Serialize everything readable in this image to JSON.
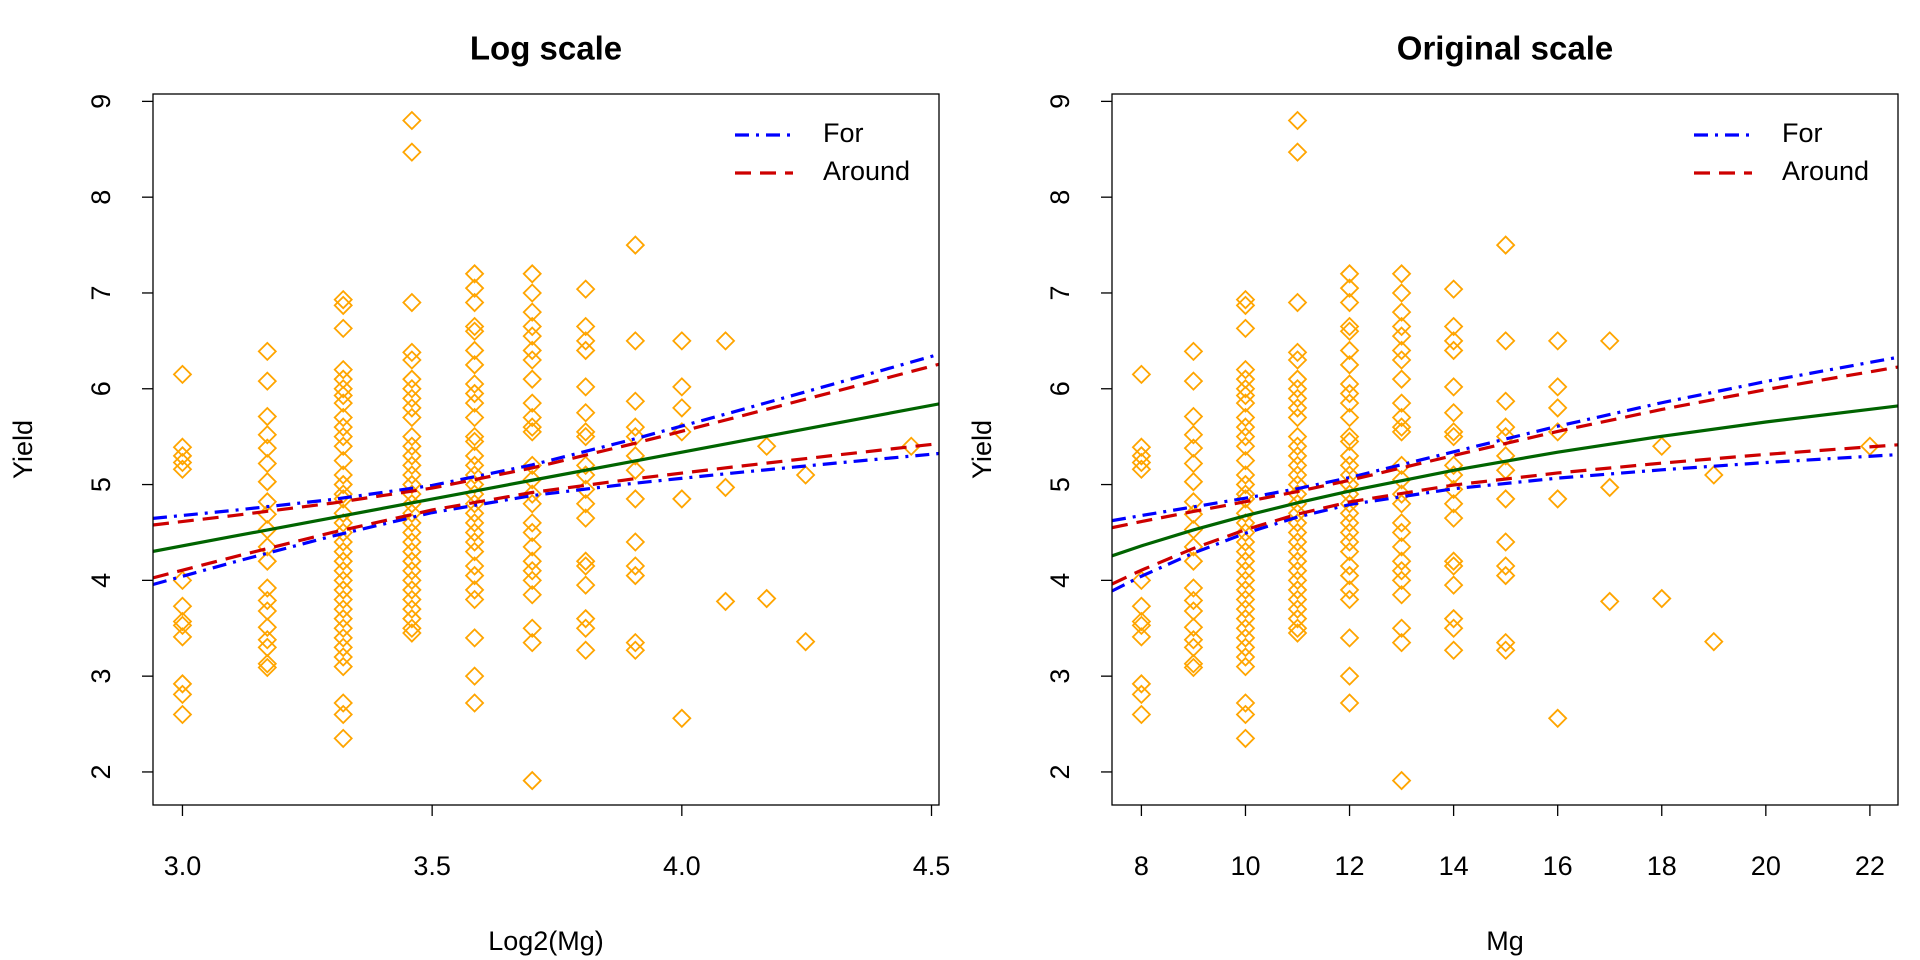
{
  "chart_data": [
    {
      "type": "scatter",
      "title": "Log scale",
      "xlabel": "Log2(Mg)",
      "ylabel": "Yield",
      "xlim": [
        2.941,
        4.515
      ],
      "ylim": [
        1.655,
        9.077
      ],
      "xticks": [
        {
          "value": 3,
          "label": "3.0"
        },
        3.5,
        {
          "value": 4,
          "label": "4.0"
        },
        4.5
      ],
      "yticks": [
        2,
        3,
        4,
        5,
        6,
        7,
        8,
        9
      ],
      "legend": "topright",
      "points": {
        "color": "#ffa500",
        "groups": [
          {
            "x": 3,
            "values": [
              6.15,
              5.39,
              5.3,
              5.23,
              5.16,
              4.0,
              3.73,
              3.57,
              3.53,
              3.41,
              2.92,
              2.81,
              2.6
            ]
          },
          {
            "x": 3.1699,
            "values": [
              6.39,
              6.08,
              5.71,
              5.52,
              5.38,
              5.22,
              5.03,
              4.82,
              4.69,
              4.53,
              4.35,
              4.2,
              3.92,
              3.79,
              3.68,
              3.51,
              3.38,
              3.3,
              3.13,
              3.09
            ]
          },
          {
            "x": 3.3219,
            "values": [
              6.93,
              6.87,
              6.63,
              6.2,
              6.1,
              6.0,
              5.93,
              5.85,
              5.7,
              5.6,
              5.5,
              5.4,
              5.25,
              5.1,
              5.0,
              4.9,
              4.85,
              4.7,
              4.6,
              4.5,
              4.4,
              4.3,
              4.2,
              4.1,
              4.0,
              3.9,
              3.8,
              3.7,
              3.6,
              3.5,
              3.4,
              3.3,
              3.2,
              3.1,
              2.72,
              2.6,
              2.35
            ]
          },
          {
            "x": 3.4594,
            "values": [
              8.8,
              8.47,
              6.9,
              6.38,
              6.3,
              6.1,
              6.0,
              5.9,
              5.8,
              5.7,
              5.5,
              5.4,
              5.3,
              5.2,
              5.1,
              5.0,
              4.9,
              4.8,
              4.7,
              4.6,
              4.5,
              4.4,
              4.3,
              4.2,
              4.1,
              4.0,
              3.9,
              3.8,
              3.7,
              3.6,
              3.5,
              3.45
            ]
          },
          {
            "x": 3.585,
            "values": [
              7.2,
              7.05,
              6.9,
              6.65,
              6.6,
              6.4,
              6.25,
              6.05,
              5.95,
              5.85,
              5.7,
              5.5,
              5.45,
              5.3,
              5.2,
              5.1,
              5.0,
              4.9,
              4.8,
              4.7,
              4.6,
              4.5,
              4.4,
              4.3,
              4.15,
              4.05,
              3.9,
              3.8,
              3.4,
              3.0,
              2.72
            ]
          },
          {
            "x": 3.7004,
            "values": [
              7.2,
              7.0,
              6.8,
              6.65,
              6.55,
              6.4,
              6.3,
              6.1,
              5.85,
              5.7,
              5.6,
              5.55,
              5.2,
              5.05,
              4.9,
              4.8,
              4.6,
              4.5,
              4.35,
              4.2,
              4.1,
              4.0,
              3.85,
              3.5,
              3.35,
              1.91
            ]
          },
          {
            "x": 3.8074,
            "values": [
              7.04,
              6.65,
              6.5,
              6.4,
              6.02,
              5.75,
              5.55,
              5.5,
              5.2,
              5.1,
              4.95,
              4.8,
              4.65,
              4.2,
              4.15,
              3.95,
              3.6,
              3.5,
              3.27
            ]
          },
          {
            "x": 3.9069,
            "values": [
              7.5,
              6.5,
              5.87,
              5.6,
              5.5,
              5.3,
              5.15,
              4.85,
              4.4,
              4.15,
              4.05,
              3.35,
              3.27
            ]
          },
          {
            "x": 4,
            "values": [
              6.5,
              6.02,
              5.8,
              5.55,
              4.85,
              2.56
            ]
          },
          {
            "x": 4.0875,
            "values": [
              6.5,
              4.97,
              3.78
            ]
          },
          {
            "x": 4.1699,
            "values": [
              5.4,
              3.81
            ]
          },
          {
            "x": 4.2479,
            "values": [
              5.1,
              3.36
            ]
          },
          {
            "x": 4.4594,
            "values": [
              5.4
            ]
          }
        ]
      },
      "curve_x": [
        2.941,
        3.1,
        3.3,
        3.5,
        3.7,
        3.9,
        4.1,
        4.3,
        4.515
      ],
      "fit": {
        "color": "#006400",
        "values": [
          4.302,
          4.458,
          4.653,
          4.849,
          5.045,
          5.24,
          5.436,
          5.632,
          5.842
        ]
      },
      "bands": [
        {
          "name": "For",
          "color": "#0000ff",
          "dash": "dotdash",
          "upper": [
            4.647,
            4.729,
            4.844,
            4.991,
            5.205,
            5.469,
            5.753,
            6.044,
            6.36
          ],
          "lower": [
            3.957,
            4.187,
            4.462,
            4.707,
            4.885,
            5.011,
            5.119,
            5.22,
            5.324
          ]
        },
        {
          "name": "Around",
          "color": "#cd0000",
          "dash": "dashed",
          "upper": [
            4.578,
            4.675,
            4.806,
            4.963,
            5.173,
            5.423,
            5.69,
            5.962,
            6.256
          ],
          "lower": [
            4.026,
            4.241,
            4.5,
            4.735,
            4.917,
            5.057,
            5.182,
            5.302,
            5.428
          ]
        }
      ]
    },
    {
      "type": "scatter",
      "title": "Original scale",
      "xlabel": "Mg",
      "ylabel": "Yield",
      "xlim": [
        7.435,
        22.54
      ],
      "ylim": [
        1.655,
        9.077
      ],
      "xticks": [
        8,
        10,
        12,
        14,
        16,
        18,
        20,
        22
      ],
      "yticks": [
        2,
        3,
        4,
        5,
        6,
        7,
        8,
        9
      ],
      "legend": "topright",
      "points": {
        "color": "#ffa500",
        "groups": [
          {
            "x": 8,
            "values": [
              6.15,
              5.39,
              5.3,
              5.23,
              5.16,
              4.0,
              3.73,
              3.57,
              3.53,
              3.41,
              2.92,
              2.81,
              2.6
            ]
          },
          {
            "x": 9,
            "values": [
              6.39,
              6.08,
              5.71,
              5.52,
              5.38,
              5.22,
              5.03,
              4.82,
              4.69,
              4.53,
              4.35,
              4.2,
              3.92,
              3.79,
              3.68,
              3.51,
              3.38,
              3.3,
              3.13,
              3.09
            ]
          },
          {
            "x": 10,
            "values": [
              6.93,
              6.87,
              6.63,
              6.2,
              6.1,
              6.0,
              5.93,
              5.85,
              5.7,
              5.6,
              5.5,
              5.4,
              5.25,
              5.1,
              5.0,
              4.9,
              4.85,
              4.7,
              4.6,
              4.5,
              4.4,
              4.3,
              4.2,
              4.1,
              4.0,
              3.9,
              3.8,
              3.7,
              3.6,
              3.5,
              3.4,
              3.3,
              3.2,
              3.1,
              2.72,
              2.6,
              2.35
            ]
          },
          {
            "x": 11,
            "values": [
              8.8,
              8.47,
              6.9,
              6.38,
              6.3,
              6.1,
              6.0,
              5.9,
              5.8,
              5.7,
              5.5,
              5.4,
              5.3,
              5.2,
              5.1,
              5.0,
              4.9,
              4.8,
              4.7,
              4.6,
              4.5,
              4.4,
              4.3,
              4.2,
              4.1,
              4.0,
              3.9,
              3.8,
              3.7,
              3.6,
              3.5,
              3.45
            ]
          },
          {
            "x": 12,
            "values": [
              7.2,
              7.05,
              6.9,
              6.65,
              6.6,
              6.4,
              6.25,
              6.05,
              5.95,
              5.85,
              5.7,
              5.5,
              5.45,
              5.3,
              5.2,
              5.1,
              5.0,
              4.9,
              4.8,
              4.7,
              4.6,
              4.5,
              4.4,
              4.3,
              4.15,
              4.05,
              3.9,
              3.8,
              3.4,
              3.0,
              2.72
            ]
          },
          {
            "x": 13,
            "values": [
              7.2,
              7.0,
              6.8,
              6.65,
              6.55,
              6.4,
              6.3,
              6.1,
              5.85,
              5.7,
              5.6,
              5.55,
              5.2,
              5.05,
              4.9,
              4.8,
              4.6,
              4.5,
              4.35,
              4.2,
              4.1,
              4.0,
              3.85,
              3.5,
              3.35,
              1.91
            ]
          },
          {
            "x": 14,
            "values": [
              7.04,
              6.65,
              6.5,
              6.4,
              6.02,
              5.75,
              5.55,
              5.5,
              5.2,
              5.1,
              4.95,
              4.8,
              4.65,
              4.2,
              4.15,
              3.95,
              3.6,
              3.5,
              3.27
            ]
          },
          {
            "x": 15,
            "values": [
              7.5,
              6.5,
              5.87,
              5.6,
              5.5,
              5.3,
              5.15,
              4.85,
              4.4,
              4.15,
              4.05,
              3.35,
              3.27
            ]
          },
          {
            "x": 16,
            "values": [
              6.5,
              6.02,
              5.8,
              5.55,
              4.85,
              2.56
            ]
          },
          {
            "x": 17,
            "values": [
              6.5,
              4.97,
              3.78
            ]
          },
          {
            "x": 18,
            "values": [
              5.4,
              3.81
            ]
          },
          {
            "x": 19,
            "values": [
              5.1,
              3.36
            ]
          },
          {
            "x": 22,
            "values": [
              5.4
            ]
          }
        ]
      },
      "curve_x": [
        7.435,
        8,
        9,
        10,
        11,
        12,
        14,
        16,
        18,
        20,
        22.54
      ],
      "fit": {
        "color": "#006400",
        "values": [
          4.256,
          4.36,
          4.526,
          4.675,
          4.809,
          4.932,
          5.149,
          5.338,
          5.504,
          5.653,
          5.821
        ]
      },
      "bands": [
        {
          "name": "For",
          "color": "#0000ff",
          "dash": "dotdash",
          "upper": [
            4.623,
            4.677,
            4.767,
            4.858,
            4.957,
            5.073,
            5.342,
            5.609,
            5.854,
            6.076,
            6.329
          ],
          "lower": [
            3.889,
            4.043,
            4.285,
            4.492,
            4.661,
            4.791,
            4.956,
            5.067,
            5.154,
            5.23,
            5.313
          ]
        },
        {
          "name": "Around",
          "color": "#cd0000",
          "dash": "dashed",
          "upper": [
            4.55,
            4.614,
            4.719,
            4.821,
            4.927,
            5.045,
            5.303,
            5.555,
            5.784,
            5.991,
            6.227
          ],
          "lower": [
            3.962,
            4.106,
            4.333,
            4.529,
            4.691,
            4.819,
            4.995,
            5.121,
            5.224,
            5.315,
            5.415
          ]
        }
      ]
    }
  ]
}
